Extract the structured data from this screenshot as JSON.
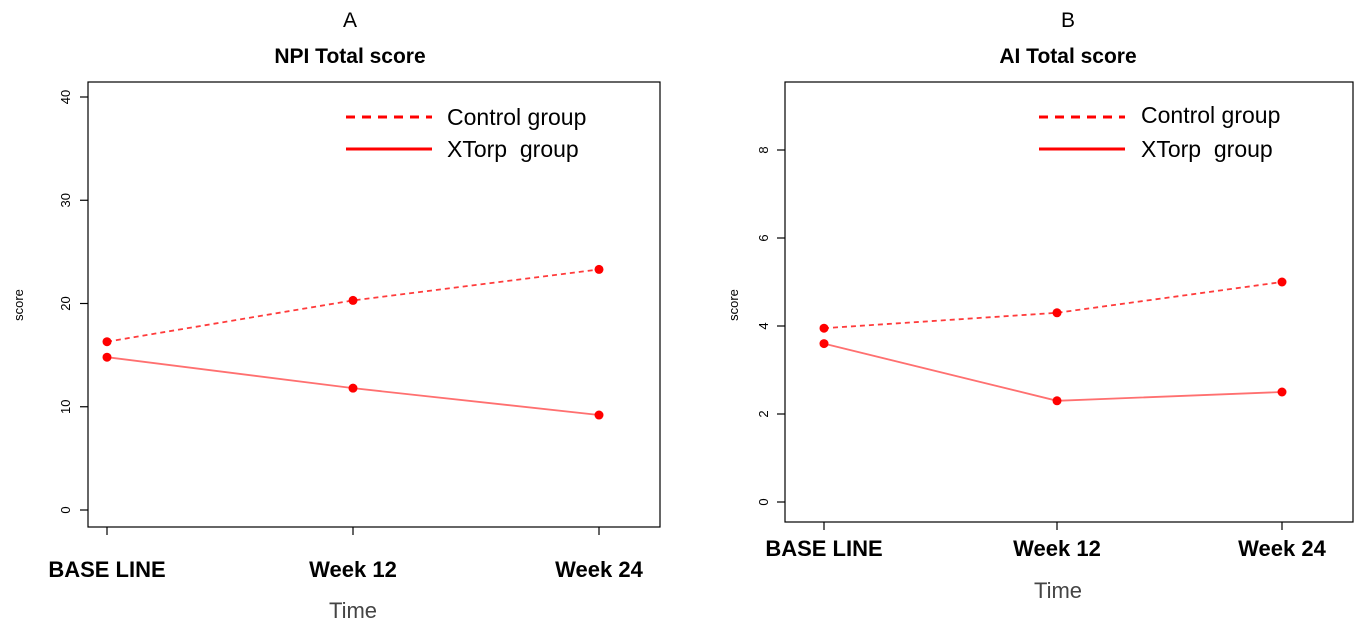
{
  "colors": {
    "control_line": "#ff3b3b",
    "xtorp_line": "#ff7070",
    "points": "#ff0000",
    "legend_line": "#ff0000",
    "axis": "#000000"
  },
  "chart_data": [
    {
      "panel_letter": "A",
      "type": "line",
      "title": "NPI Total score",
      "xlabel": "Time",
      "ylabel": "score",
      "categories": [
        "BASE LINE",
        "Week 12",
        "Week 24"
      ],
      "ylim": [
        0,
        40
      ],
      "yticks": [
        0,
        10,
        20,
        30,
        40
      ],
      "grid": false,
      "legend_position": "top-right",
      "series": [
        {
          "name": "Control group",
          "style": "dashed",
          "values": [
            16.3,
            20.3,
            23.3
          ]
        },
        {
          "name": "XTorp  group",
          "style": "solid",
          "values": [
            14.8,
            11.8,
            9.2
          ]
        }
      ]
    },
    {
      "panel_letter": "B",
      "type": "line",
      "title": "AI Total score",
      "xlabel": "Time",
      "ylabel": "score",
      "categories": [
        "BASE LINE",
        "Week 12",
        "Week 24"
      ],
      "ylim": [
        0,
        8
      ],
      "yticks": [
        0,
        2,
        4,
        6,
        8
      ],
      "grid": false,
      "legend_position": "top-right",
      "series": [
        {
          "name": "Control group",
          "style": "dashed",
          "values": [
            3.95,
            4.3,
            5.0
          ]
        },
        {
          "name": "XTorp  group",
          "style": "solid",
          "values": [
            3.6,
            2.3,
            2.5
          ]
        }
      ]
    }
  ]
}
